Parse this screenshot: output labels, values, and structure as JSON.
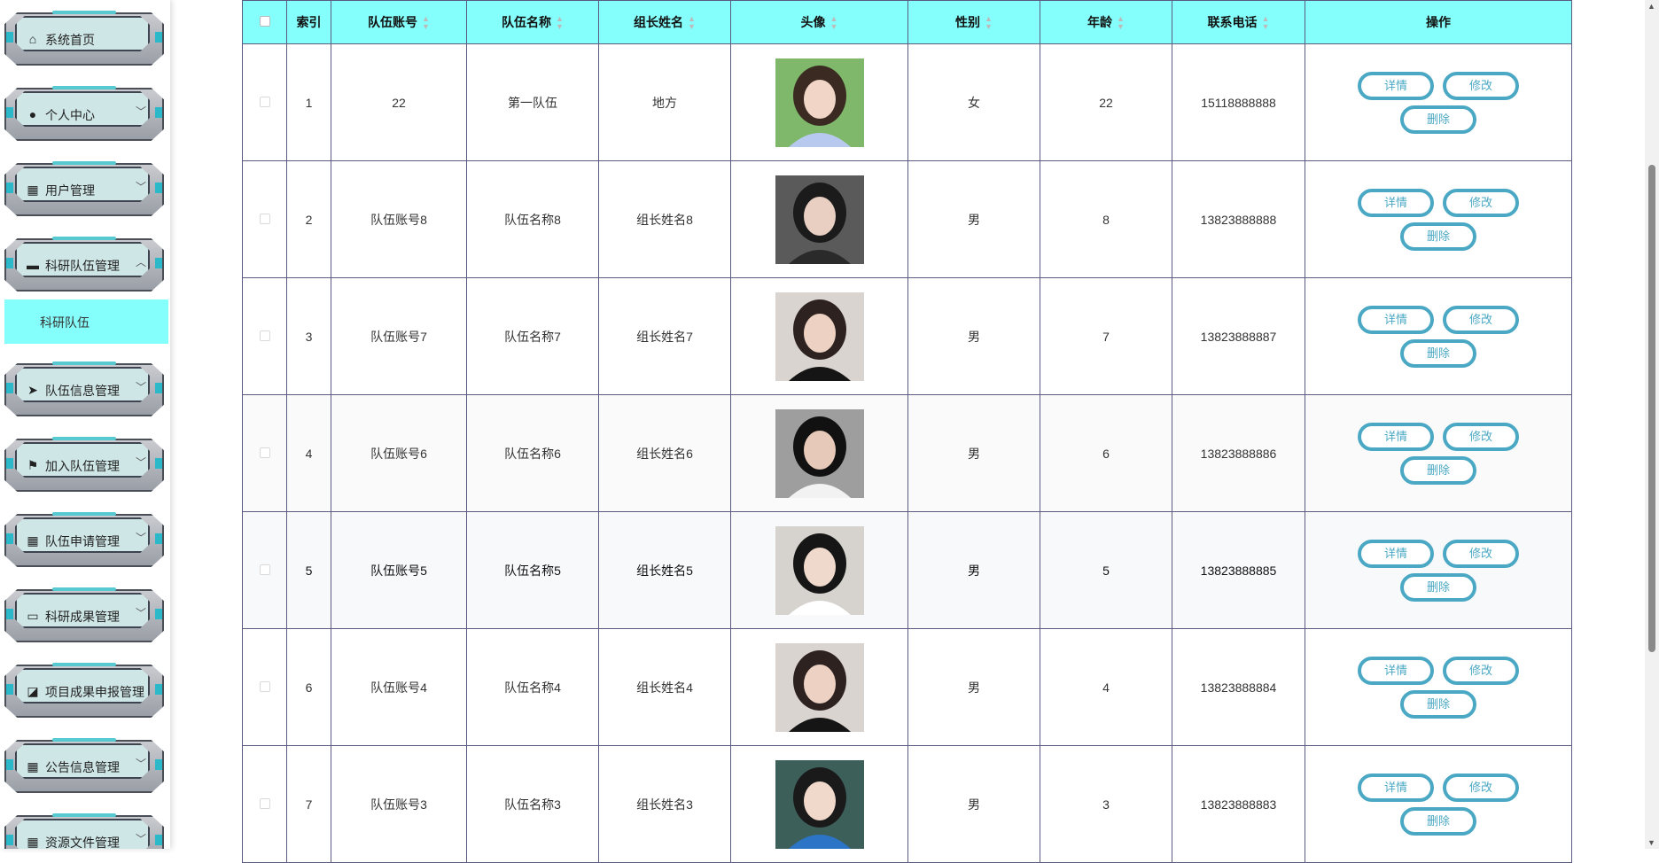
{
  "sidebar": {
    "items": [
      {
        "label": "系统首页",
        "icon": "home-icon",
        "chevron": false
      },
      {
        "label": "个人中心",
        "icon": "user-icon",
        "chevron": true
      },
      {
        "label": "用户管理",
        "icon": "grid-icon",
        "chevron": true
      },
      {
        "label": "科研队伍管理",
        "icon": "store-icon",
        "chevron": true,
        "open": true
      },
      {
        "label": "队伍信息管理",
        "icon": "send-icon",
        "chevron": true
      },
      {
        "label": "加入队伍管理",
        "icon": "flag-icon",
        "chevron": true
      },
      {
        "label": "队伍申请管理",
        "icon": "grid-icon",
        "chevron": true
      },
      {
        "label": "科研成果管理",
        "icon": "monitor-icon",
        "chevron": true
      },
      {
        "label": "项目成果申报管理",
        "icon": "chart-icon",
        "chevron": false
      },
      {
        "label": "公告信息管理",
        "icon": "grid-icon",
        "chevron": true
      },
      {
        "label": "资源文件管理",
        "icon": "grid-icon",
        "chevron": true
      }
    ],
    "submenu_active": "科研队伍"
  },
  "table": {
    "headers": {
      "index": "索引",
      "account": "队伍账号",
      "name": "队伍名称",
      "leader": "组长姓名",
      "avatar": "头像",
      "gender": "性别",
      "age": "年龄",
      "phone": "联系电话",
      "ops": "操作"
    },
    "buttons": {
      "detail": "详情",
      "edit": "修改",
      "delete": "删除"
    },
    "rows": [
      {
        "index": "1",
        "account": "22",
        "name": "第一队伍",
        "leader": "地方",
        "gender": "女",
        "age": "22",
        "phone": "15118888888"
      },
      {
        "index": "2",
        "account": "队伍账号8",
        "name": "队伍名称8",
        "leader": "组长姓名8",
        "gender": "男",
        "age": "8",
        "phone": "13823888888"
      },
      {
        "index": "3",
        "account": "队伍账号7",
        "name": "队伍名称7",
        "leader": "组长姓名7",
        "gender": "男",
        "age": "7",
        "phone": "13823888887"
      },
      {
        "index": "4",
        "account": "队伍账号6",
        "name": "队伍名称6",
        "leader": "组长姓名6",
        "gender": "男",
        "age": "6",
        "phone": "13823888886"
      },
      {
        "index": "5",
        "account": "队伍账号5",
        "name": "队伍名称5",
        "leader": "组长姓名5",
        "gender": "男",
        "age": "5",
        "phone": "13823888885"
      },
      {
        "index": "6",
        "account": "队伍账号4",
        "name": "队伍名称4",
        "leader": "组长姓名4",
        "gender": "男",
        "age": "4",
        "phone": "13823888884"
      },
      {
        "index": "7",
        "account": "队伍账号3",
        "name": "队伍名称3",
        "leader": "组长姓名3",
        "gender": "男",
        "age": "3",
        "phone": "13823888883"
      }
    ]
  },
  "colors": {
    "accent": "#85fffb",
    "button": "#4aa8c4",
    "border": "#5b5b82"
  }
}
